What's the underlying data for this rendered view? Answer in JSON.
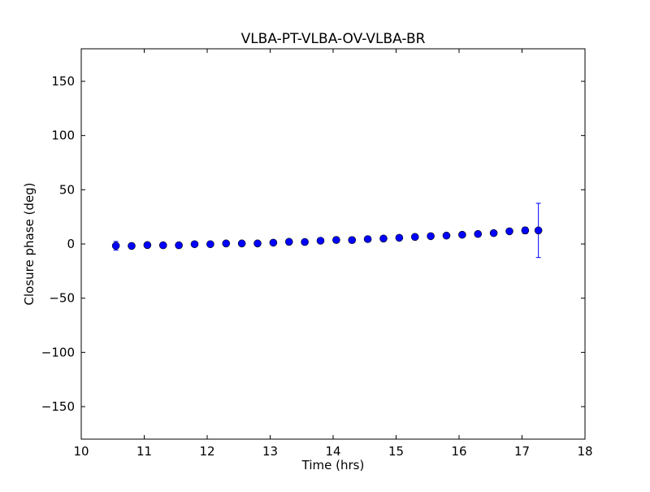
{
  "chart_data": {
    "type": "scatter",
    "title": "VLBA-PT-VLBA-OV-VLBA-BR",
    "xlabel": "Time (hrs)",
    "ylabel": "Closure phase (deg)",
    "xlim": [
      10,
      18
    ],
    "ylim": [
      -180,
      180
    ],
    "xticks": [
      10,
      11,
      12,
      13,
      14,
      15,
      16,
      17,
      18
    ],
    "yticks": [
      -150,
      -100,
      -50,
      0,
      50,
      100,
      150
    ],
    "ytick_labels": [
      "−150",
      "−100",
      "−50",
      "0",
      "50",
      "100",
      "150"
    ],
    "grid": false,
    "marker_color": "#0000ff",
    "errorbar_color": "#0000ff",
    "points": [
      {
        "x": 10.55,
        "y": -1.7,
        "err": 4
      },
      {
        "x": 10.8,
        "y": -1.8,
        "err": 1
      },
      {
        "x": 11.05,
        "y": -1.0,
        "err": 1
      },
      {
        "x": 11.3,
        "y": -1.2,
        "err": 1
      },
      {
        "x": 11.55,
        "y": -1.2,
        "err": 1
      },
      {
        "x": 11.8,
        "y": -0.2,
        "err": 1
      },
      {
        "x": 12.05,
        "y": -0.2,
        "err": 1
      },
      {
        "x": 12.3,
        "y": 0.5,
        "err": 1
      },
      {
        "x": 12.55,
        "y": 0.5,
        "err": 1
      },
      {
        "x": 12.8,
        "y": 0.5,
        "err": 1
      },
      {
        "x": 13.05,
        "y": 1.2,
        "err": 1
      },
      {
        "x": 13.3,
        "y": 2.0,
        "err": 1
      },
      {
        "x": 13.55,
        "y": 1.8,
        "err": 1
      },
      {
        "x": 13.8,
        "y": 3.0,
        "err": 1
      },
      {
        "x": 14.05,
        "y": 3.7,
        "err": 1
      },
      {
        "x": 14.3,
        "y": 3.6,
        "err": 1
      },
      {
        "x": 14.55,
        "y": 4.5,
        "err": 1
      },
      {
        "x": 14.8,
        "y": 5.0,
        "err": 1
      },
      {
        "x": 15.05,
        "y": 5.7,
        "err": 1
      },
      {
        "x": 15.3,
        "y": 6.5,
        "err": 1
      },
      {
        "x": 15.55,
        "y": 7.2,
        "err": 1
      },
      {
        "x": 15.8,
        "y": 7.7,
        "err": 1
      },
      {
        "x": 16.05,
        "y": 8.5,
        "err": 1
      },
      {
        "x": 16.3,
        "y": 9.2,
        "err": 1
      },
      {
        "x": 16.55,
        "y": 10.0,
        "err": 1
      },
      {
        "x": 16.8,
        "y": 11.7,
        "err": 1
      },
      {
        "x": 17.05,
        "y": 12.5,
        "err": 3
      },
      {
        "x": 17.26,
        "y": 12.5,
        "err": 25
      }
    ]
  }
}
